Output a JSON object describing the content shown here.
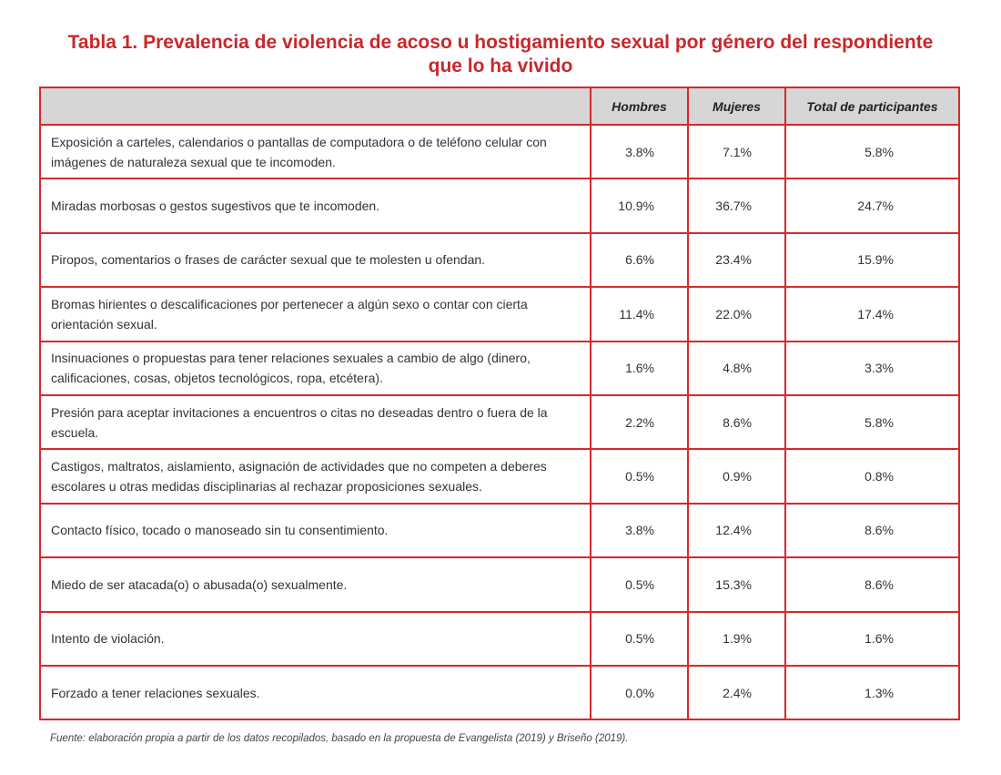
{
  "title": {
    "line1": "Tabla 1. Prevalencia de violencia de acoso u hostigamiento sexual por género del respondiente",
    "line2": "que lo ha vivido"
  },
  "table": {
    "headers": [
      "",
      "Hombres",
      "Mujeres",
      "Total de participantes"
    ],
    "rows": [
      {
        "label": "Exposición a carteles, calendarios o pantallas de computadora o de teléfono celular con imágenes de naturaleza sexual que te incomoden.",
        "hombres": "3.8%",
        "mujeres": "7.1%",
        "total": "5.8%"
      },
      {
        "label": "Miradas morbosas o gestos sugestivos que te incomoden.",
        "hombres": "10.9%",
        "mujeres": "36.7%",
        "total": "24.7%"
      },
      {
        "label": "Piropos, comentarios o frases de carácter sexual que te molesten u ofendan.",
        "hombres": "6.6%",
        "mujeres": "23.4%",
        "total": "15.9%"
      },
      {
        "label": "Bromas hirientes o descalificaciones por pertenecer a algún sexo o contar con cierta orientación sexual.",
        "hombres": "11.4%",
        "mujeres": "22.0%",
        "total": "17.4%"
      },
      {
        "label": "Insinuaciones o propuestas para tener relaciones sexuales a cambio de algo (dinero, calificaciones, cosas, objetos tecnológicos, ropa, etcétera).",
        "hombres": "1.6%",
        "mujeres": "4.8%",
        "total": "3.3%"
      },
      {
        "label": "Presión para aceptar invitaciones a encuentros o citas no deseadas dentro o fuera de la escuela.",
        "hombres": "2.2%",
        "mujeres": "8.6%",
        "total": "5.8%"
      },
      {
        "label": "Castigos, maltratos, aislamiento, asignación de actividades que no competen a deberes escolares u otras medidas disciplinarias al rechazar proposiciones sexuales.",
        "hombres": "0.5%",
        "mujeres": "0.9%",
        "total": "0.8%"
      },
      {
        "label": "Contacto físico, tocado o manoseado sin tu consentimiento.",
        "hombres": "3.8%",
        "mujeres": "12.4%",
        "total": "8.6%"
      },
      {
        "label": "Miedo de ser atacada(o) o abusada(o) sexualmente.",
        "hombres": "0.5%",
        "mujeres": "15.3%",
        "total": "8.6%"
      },
      {
        "label": "Intento de violación.",
        "hombres": "0.5%",
        "mujeres": "1.9%",
        "total": "1.6%"
      },
      {
        "label": "Forzado a tener relaciones sexuales.",
        "hombres": "0.0%",
        "mujeres": "2.4%",
        "total": "1.3%"
      }
    ]
  },
  "chart_data": {
    "type": "table",
    "title": "Tabla 1. Prevalencia de violencia de acoso u hostigamiento sexual por género del respondiente que lo ha vivido",
    "columns": [
      "Hombres",
      "Mujeres",
      "Total de participantes"
    ],
    "categories": [
      "Exposición a carteles, calendarios o pantallas de computadora o de teléfono celular con imágenes de naturaleza sexual que te incomoden.",
      "Miradas morbosas o gestos sugestivos que te incomoden.",
      "Piropos, comentarios o frases de carácter sexual que te molesten u ofendan.",
      "Bromas hirientes o descalificaciones por pertenecer a algún sexo o contar con cierta orientación sexual.",
      "Insinuaciones o propuestas para tener relaciones sexuales a cambio de algo (dinero, calificaciones, cosas, objetos tecnológicos, ropa, etcétera).",
      "Presión para aceptar invitaciones a encuentros o citas no deseadas dentro o fuera de la escuela.",
      "Castigos, maltratos, aislamiento, asignación de actividades que no competen a deberes escolares u otras medidas disciplinarias al rechazar proposiciones sexuales.",
      "Contacto físico, tocado o manoseado sin tu consentimiento.",
      "Miedo de ser atacada(o) o abusada(o) sexualmente.",
      "Intento de violación.",
      "Forzado a tener relaciones sexuales."
    ],
    "series": [
      {
        "name": "Hombres",
        "values": [
          3.8,
          10.9,
          6.6,
          11.4,
          1.6,
          2.2,
          0.5,
          3.8,
          0.5,
          0.5,
          0.0
        ]
      },
      {
        "name": "Mujeres",
        "values": [
          7.1,
          36.7,
          23.4,
          22.0,
          4.8,
          8.6,
          0.9,
          12.4,
          15.3,
          1.9,
          2.4
        ]
      },
      {
        "name": "Total de participantes",
        "values": [
          5.8,
          24.7,
          15.9,
          17.4,
          3.3,
          5.8,
          0.8,
          8.6,
          8.6,
          1.6,
          1.3
        ]
      }
    ],
    "unit": "%"
  },
  "footnote": "Fuente: elaboración propia a partir de los datos recopilados, basado en la propuesta de Evangelista (2019) y Briseño (2019).",
  "colors": {
    "accent": "#c8282d",
    "border": "#d8282d",
    "header_bg": "#d6d6d6"
  }
}
